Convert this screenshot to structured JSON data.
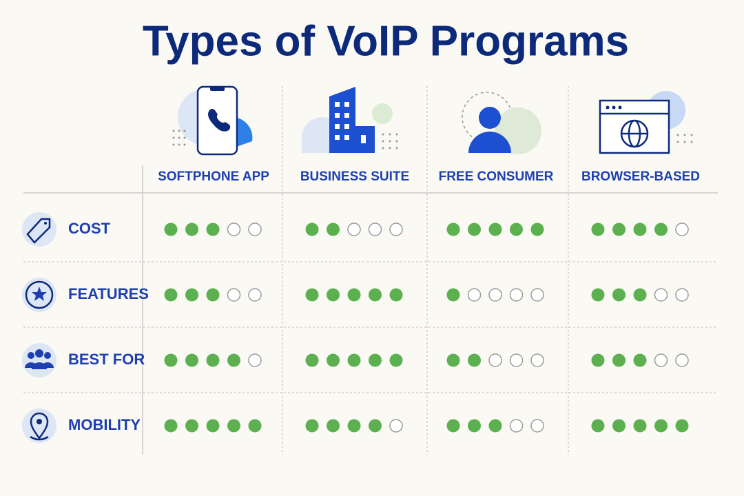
{
  "title": "Types of VoIP Programs",
  "table": {
    "columns": [
      "SOFTPHONE APP",
      "BUSINESS SUITE",
      "FREE CONSUMER",
      "BROWSER-BASED"
    ],
    "rows": [
      {
        "label": "COST",
        "ratings": [
          3,
          2,
          5,
          4
        ]
      },
      {
        "label": "FEATURES",
        "ratings": [
          3,
          5,
          1,
          3
        ]
      },
      {
        "label": "BEST FOR",
        "ratings": [
          4,
          5,
          2,
          3
        ]
      },
      {
        "label": "MOBILITY",
        "ratings": [
          5,
          4,
          3,
          5
        ]
      }
    ],
    "rating_max": 5,
    "filled_color": "#5cb04f"
  }
}
